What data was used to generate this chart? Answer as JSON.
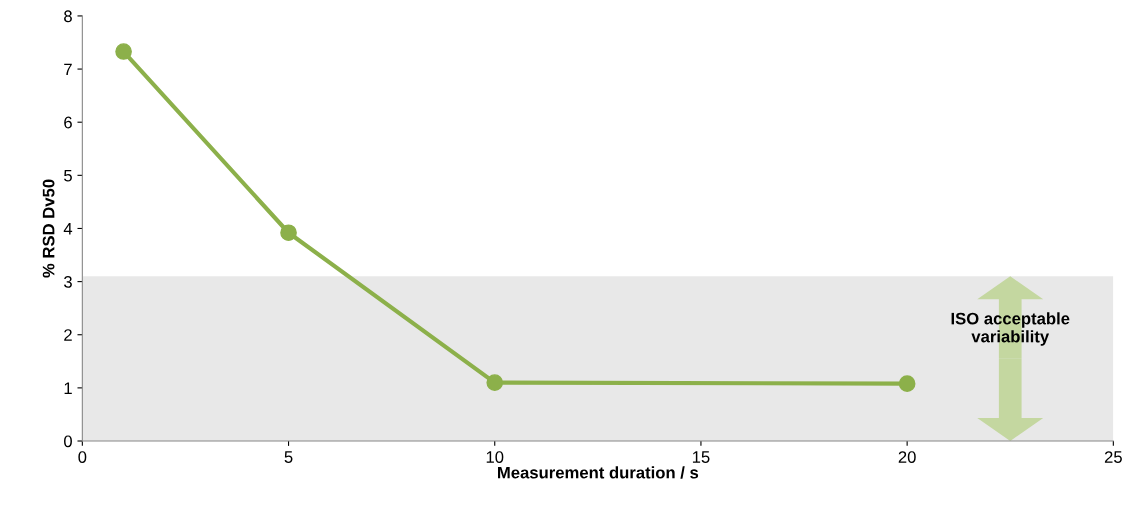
{
  "chart_data": {
    "type": "line",
    "xlabel": "Measurement duration / s",
    "ylabel": "% RSD Dv50",
    "x": [
      1,
      5,
      10,
      20
    ],
    "series": [
      {
        "color": "#8cb04a",
        "values": [
          7.33,
          3.92,
          1.1,
          1.08
        ]
      }
    ],
    "xlim": [
      0,
      25
    ],
    "xticks": [
      0,
      5,
      10,
      15,
      20,
      25
    ],
    "ylim": [
      0,
      8
    ],
    "yticks": [
      0,
      1,
      2,
      3,
      4,
      5,
      6,
      7,
      8
    ],
    "bands": [
      {
        "axis": "y",
        "from": 0,
        "to": 3.1,
        "label": "ISO acceptable\nvariability",
        "color": "#e8e8e8"
      }
    ],
    "marker": "circle",
    "line_style": "solid",
    "grid": false,
    "legend": false
  }
}
